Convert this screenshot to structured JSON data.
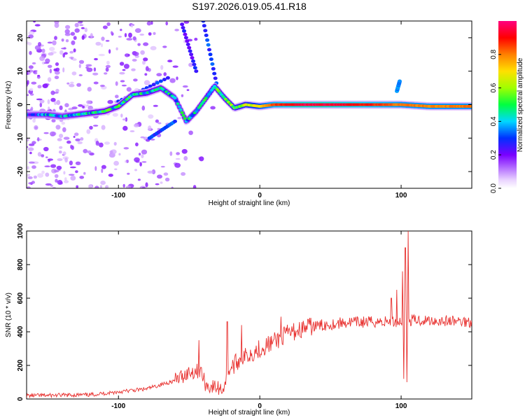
{
  "title": "S197.2026.019.05.41.R18",
  "colors": {
    "axis": "#000000",
    "snr_line": "#e8312f",
    "background": "#ffffff"
  },
  "chart_data": [
    {
      "type": "heatmap",
      "name": "spectrogram",
      "xlabel": "Height of straight line (km)",
      "ylabel": "Frequency (Hz)",
      "xlim": [
        -165,
        150
      ],
      "ylim": [
        -25,
        25
      ],
      "x_ticks": [
        -100,
        0,
        100
      ],
      "x_tick_labels": [
        "-100",
        "0",
        "100"
      ],
      "y_ticks": [
        20,
        10,
        0,
        -10,
        -20
      ],
      "y_tick_labels": [
        "20",
        "10",
        "0",
        "-10",
        "-20"
      ],
      "ridge": [
        {
          "x": -160,
          "y": -3.0,
          "amp": 0.3
        },
        {
          "x": -150,
          "y": -3.0,
          "amp": 0.35
        },
        {
          "x": -140,
          "y": -3.5,
          "amp": 0.35
        },
        {
          "x": -130,
          "y": -3.0,
          "amp": 0.4
        },
        {
          "x": -120,
          "y": -2.5,
          "amp": 0.42
        },
        {
          "x": -110,
          "y": -2.0,
          "amp": 0.45
        },
        {
          "x": -100,
          "y": -0.5,
          "amp": 0.45
        },
        {
          "x": -90,
          "y": 3.0,
          "amp": 0.45
        },
        {
          "x": -80,
          "y": 3.5,
          "amp": 0.45
        },
        {
          "x": -70,
          "y": 5.0,
          "amp": 0.42
        },
        {
          "x": -60,
          "y": 2.0,
          "amp": 0.4
        },
        {
          "x": -52,
          "y": -5.0,
          "amp": 0.4
        },
        {
          "x": -45,
          "y": -2.0,
          "amp": 0.42
        },
        {
          "x": -38,
          "y": 2.0,
          "amp": 0.45
        },
        {
          "x": -32,
          "y": 5.5,
          "amp": 0.48
        },
        {
          "x": -25,
          "y": 2.0,
          "amp": 0.5
        },
        {
          "x": -18,
          "y": -1.0,
          "amp": 0.55
        },
        {
          "x": -10,
          "y": 0.0,
          "amp": 0.6
        },
        {
          "x": 0,
          "y": -0.5,
          "amp": 0.7
        },
        {
          "x": 10,
          "y": 0.0,
          "amp": 0.85
        },
        {
          "x": 30,
          "y": 0.0,
          "amp": 0.95
        },
        {
          "x": 50,
          "y": 0.0,
          "amp": 0.95
        },
        {
          "x": 70,
          "y": 0.0,
          "amp": 0.9
        },
        {
          "x": 90,
          "y": 0.0,
          "amp": 0.85
        },
        {
          "x": 100,
          "y": 0.0,
          "amp": 0.8
        },
        {
          "x": 120,
          "y": -0.5,
          "amp": 0.8
        },
        {
          "x": 145,
          "y": -0.5,
          "amp": 0.8
        }
      ],
      "streaks": [
        {
          "x0": -40,
          "y0": 25,
          "x1": -30,
          "y1": 5,
          "amp": 0.25
        },
        {
          "x0": -55,
          "y0": 24,
          "x1": -45,
          "y1": 10,
          "amp": 0.2
        },
        {
          "x0": -100,
          "y0": 1,
          "x1": -65,
          "y1": 8,
          "amp": 0.25
        },
        {
          "x0": -78,
          "y0": -10,
          "x1": -60,
          "y1": -5,
          "amp": 0.25
        },
        {
          "x0": 97,
          "y0": 4,
          "x1": 99,
          "y1": 7,
          "amp": 0.3
        }
      ]
    },
    {
      "type": "line",
      "name": "snr",
      "xlabel": "Height of straight line (km)",
      "ylabel": "SNR (10 * v/v)",
      "xlim": [
        -165,
        150
      ],
      "ylim": [
        0,
        1000
      ],
      "x_ticks": [
        -100,
        0,
        100
      ],
      "x_tick_labels": [
        "-100",
        "0",
        "100"
      ],
      "y_ticks": [
        0,
        200,
        400,
        600,
        800,
        1000
      ],
      "y_tick_labels": [
        "0",
        "200",
        "400",
        "600",
        "800",
        "1000"
      ],
      "trend": [
        {
          "x": -165,
          "y": 20
        },
        {
          "x": -120,
          "y": 25
        },
        {
          "x": -80,
          "y": 60
        },
        {
          "x": -60,
          "y": 110
        },
        {
          "x": -50,
          "y": 160
        },
        {
          "x": -42,
          "y": 170
        },
        {
          "x": -38,
          "y": 80
        },
        {
          "x": -26,
          "y": 60
        },
        {
          "x": -22,
          "y": 170
        },
        {
          "x": -15,
          "y": 230
        },
        {
          "x": 0,
          "y": 300
        },
        {
          "x": 10,
          "y": 340
        },
        {
          "x": 20,
          "y": 390
        },
        {
          "x": 35,
          "y": 430
        },
        {
          "x": 60,
          "y": 455
        },
        {
          "x": 85,
          "y": 460
        },
        {
          "x": 95,
          "y": 460
        },
        {
          "x": 110,
          "y": 470
        },
        {
          "x": 150,
          "y": 460
        }
      ],
      "spikes": [
        {
          "x": -43,
          "y": 350
        },
        {
          "x": -23,
          "y": 460
        },
        {
          "x": -13,
          "y": 440
        },
        {
          "x": 15,
          "y": 490
        },
        {
          "x": 93,
          "y": 600
        },
        {
          "x": 97,
          "y": 650
        },
        {
          "x": 101,
          "y": 760
        },
        {
          "x": 102,
          "y": 120
        },
        {
          "x": 103,
          "y": 900
        },
        {
          "x": 104,
          "y": 100
        },
        {
          "x": 105,
          "y": 1000
        }
      ]
    }
  ],
  "colorbar": {
    "label": "Normalized spectral amplitude",
    "ticks": [
      0.0,
      0.2,
      0.4,
      0.6,
      0.8
    ],
    "tick_labels": [
      "0.0",
      "0.2",
      "0.4",
      "0.6",
      "0.8"
    ]
  }
}
